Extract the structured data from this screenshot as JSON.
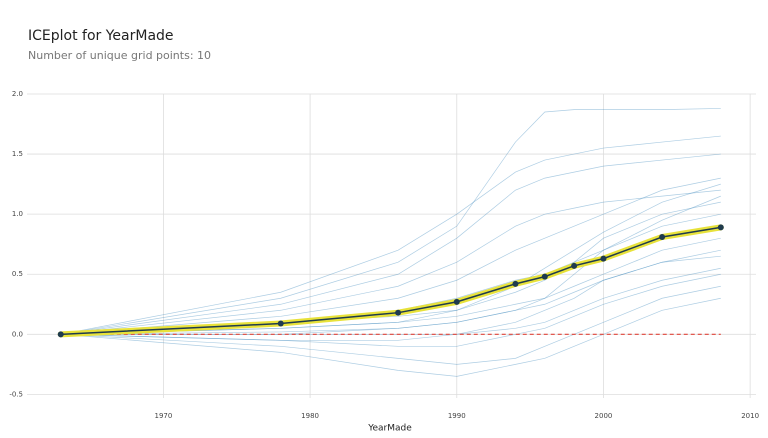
{
  "chart_data": {
    "type": "ice",
    "title": "ICEplot for YearMade",
    "subtitle": "Number of unique grid points: 10",
    "x_label": "YearMade",
    "x": [
      1963,
      1978,
      1986,
      1990,
      1994,
      1996,
      1998,
      2000,
      2004,
      2008
    ],
    "average": {
      "values": [
        0,
        0.09,
        0.18,
        0.27,
        0.42,
        0.48,
        0.57,
        0.63,
        0.81,
        0.89
      ],
      "color": "#1f3b4d",
      "highlight_color": "#e8e23a"
    },
    "ice_color": "#4a90c2",
    "ice_lines": [
      [
        0,
        0.3,
        0.6,
        0.9,
        1.6,
        1.85,
        1.87,
        1.87,
        1.87,
        1.88
      ],
      [
        0,
        0.25,
        0.5,
        0.8,
        1.2,
        1.3,
        1.35,
        1.4,
        1.45,
        1.5
      ],
      [
        0,
        0.15,
        0.3,
        0.45,
        0.7,
        0.8,
        0.9,
        1.0,
        1.2,
        1.3
      ],
      [
        0,
        0.1,
        0.2,
        0.3,
        0.45,
        0.5,
        0.6,
        0.7,
        0.9,
        1.0
      ],
      [
        0,
        0.05,
        0.1,
        0.15,
        0.25,
        0.3,
        0.4,
        0.5,
        0.7,
        0.8
      ],
      [
        0,
        0.02,
        0.05,
        0.1,
        0.2,
        0.25,
        0.35,
        0.45,
        0.6,
        0.7
      ],
      [
        0,
        0,
        0,
        0,
        0.05,
        0.1,
        0.2,
        0.3,
        0.45,
        0.55
      ],
      [
        0,
        -0.05,
        -0.1,
        -0.1,
        0,
        0.05,
        0.15,
        0.25,
        0.4,
        0.5
      ],
      [
        0,
        -0.1,
        -0.2,
        -0.25,
        -0.2,
        -0.1,
        0,
        0.1,
        0.3,
        0.4
      ],
      [
        0,
        -0.15,
        -0.3,
        -0.35,
        -0.25,
        -0.2,
        -0.1,
        0,
        0.2,
        0.3
      ],
      [
        0,
        0.2,
        0.4,
        0.6,
        0.9,
        1.0,
        1.05,
        1.1,
        1.15,
        1.2
      ],
      [
        0,
        0.1,
        0.15,
        0.2,
        0.35,
        0.45,
        0.6,
        0.8,
        1.0,
        1.1
      ],
      [
        0,
        0.05,
        0.1,
        0.2,
        0.4,
        0.55,
        0.7,
        0.85,
        1.1,
        1.25
      ],
      [
        0,
        -0.05,
        -0.05,
        0,
        0.1,
        0.2,
        0.3,
        0.45,
        0.6,
        0.65
      ],
      [
        0,
        0.35,
        0.7,
        1.0,
        1.35,
        1.45,
        1.5,
        1.55,
        1.6,
        1.65
      ],
      [
        0,
        0,
        0.05,
        0.1,
        0.2,
        0.3,
        0.5,
        0.7,
        0.95,
        1.15
      ]
    ],
    "baseline": {
      "value": 0,
      "color": "#e0453a"
    },
    "xlim": [
      1960.7,
      2010.4
    ],
    "ylim": [
      -0.53,
      2.0
    ],
    "xticks": [
      1970,
      1980,
      1990,
      2000,
      2010
    ],
    "yticks": [
      -0.5,
      {
        "value": 0,
        "label": "0.0"
      },
      0.5,
      {
        "value": 1,
        "label": "1.0"
      },
      1.5,
      {
        "value": 2,
        "label": "2.0"
      }
    ],
    "grid": true
  }
}
